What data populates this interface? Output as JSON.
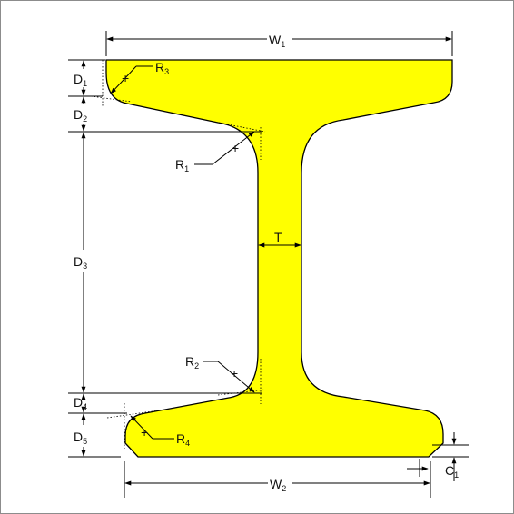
{
  "diagram": {
    "colors": {
      "section_fill": "#ffff00",
      "line": "#000000",
      "border": "#8c8c8c"
    },
    "labels": {
      "W1": {
        "main": "W",
        "sub": "1"
      },
      "W2": {
        "main": "W",
        "sub": "2"
      },
      "D1": {
        "main": "D",
        "sub": "1"
      },
      "D2": {
        "main": "D",
        "sub": "2"
      },
      "D3": {
        "main": "D",
        "sub": "3"
      },
      "D4": {
        "main": "D",
        "sub": "4"
      },
      "D5": {
        "main": "D",
        "sub": "5"
      },
      "R1": {
        "main": "R",
        "sub": "1"
      },
      "R2": {
        "main": "R",
        "sub": "2"
      },
      "R3": {
        "main": "R",
        "sub": "3"
      },
      "R4": {
        "main": "R",
        "sub": "4"
      },
      "T": {
        "main": "T"
      },
      "C1": {
        "main": "C",
        "sub": "1"
      }
    }
  }
}
